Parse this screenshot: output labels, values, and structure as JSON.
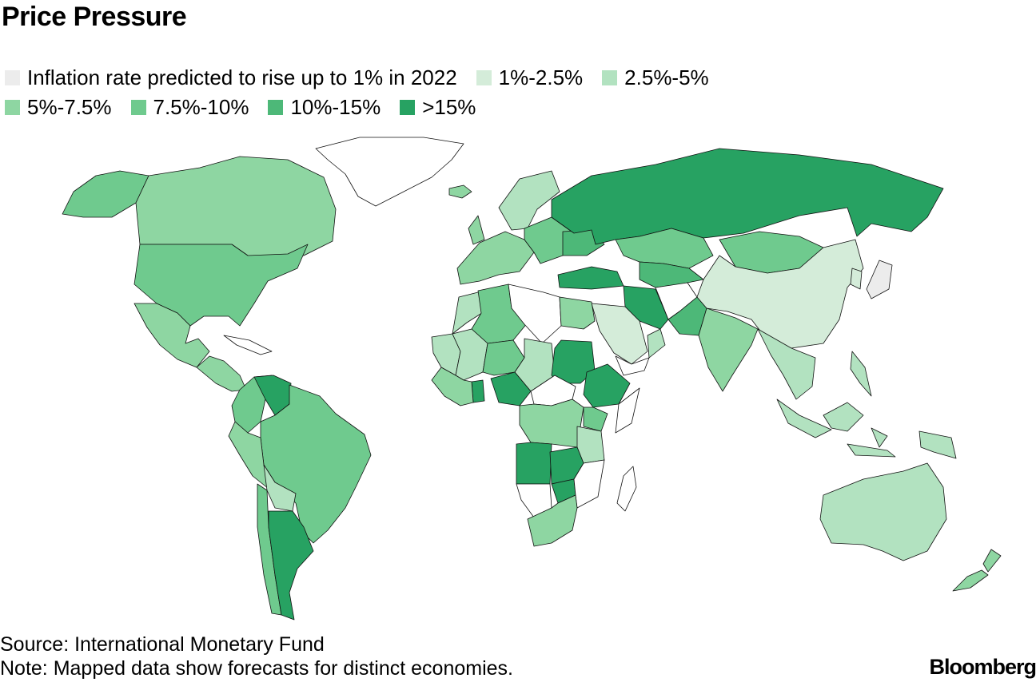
{
  "title": "Price Pressure",
  "legend": [
    {
      "label": "Inflation rate predicted to rise up to 1% in 2022",
      "color": "#ececec"
    },
    {
      "label": "1%-2.5%",
      "color": "#d4ecd9"
    },
    {
      "label": "2.5%-5%",
      "color": "#b2e2c0"
    },
    {
      "label": "5%-7.5%",
      "color": "#8ed6a2"
    },
    {
      "label": "7.5%-10%",
      "color": "#6fca8e"
    },
    {
      "label": "10%-15%",
      "color": "#4db878"
    },
    {
      "label": ">15%",
      "color": "#27a262"
    }
  ],
  "regions": [
    {
      "name": "Greenland",
      "class": "no-data",
      "color": "#ffffff"
    },
    {
      "name": "Canada",
      "class": "5%-7.5%",
      "color": "#8ed6a2"
    },
    {
      "name": "Alaska",
      "class": "7.5%-10%",
      "color": "#6fca8e"
    },
    {
      "name": "United States",
      "class": "7.5%-10%",
      "color": "#6fca8e"
    },
    {
      "name": "Mexico",
      "class": "5%-7.5%",
      "color": "#8ed6a2"
    },
    {
      "name": "Central America",
      "class": "5%-7.5%",
      "color": "#8ed6a2"
    },
    {
      "name": "Cuba",
      "class": "no-data",
      "color": "#ffffff"
    },
    {
      "name": "Venezuela",
      "class": ">15%",
      "color": "#27a262"
    },
    {
      "name": "Colombia",
      "class": "7.5%-10%",
      "color": "#6fca8e"
    },
    {
      "name": "Peru",
      "class": "5%-7.5%",
      "color": "#8ed6a2"
    },
    {
      "name": "Brazil",
      "class": "7.5%-10%",
      "color": "#6fca8e"
    },
    {
      "name": "Bolivia",
      "class": "2.5%-5%",
      "color": "#b2e2c0"
    },
    {
      "name": "Chile",
      "class": "7.5%-10%",
      "color": "#6fca8e"
    },
    {
      "name": "Argentina",
      "class": ">15%",
      "color": "#27a262"
    },
    {
      "name": "Iceland",
      "class": "5%-7.5%",
      "color": "#8ed6a2"
    },
    {
      "name": "United Kingdom",
      "class": "5%-7.5%",
      "color": "#8ed6a2"
    },
    {
      "name": "Scandinavia",
      "class": "2.5%-5%",
      "color": "#b2e2c0"
    },
    {
      "name": "Western Europe",
      "class": "5%-7.5%",
      "color": "#8ed6a2"
    },
    {
      "name": "Eastern Europe",
      "class": "7.5%-10%",
      "color": "#6fca8e"
    },
    {
      "name": "Ukraine",
      "class": "10%-15%",
      "color": "#4db878"
    },
    {
      "name": "Russia",
      "class": ">15%",
      "color": "#27a262"
    },
    {
      "name": "Turkey",
      "class": ">15%",
      "color": "#27a262"
    },
    {
      "name": "Kazakhstan",
      "class": "7.5%-10%",
      "color": "#6fca8e"
    },
    {
      "name": "Central Asia",
      "class": "10%-15%",
      "color": "#4db878"
    },
    {
      "name": "Iran",
      "class": ">15%",
      "color": "#27a262"
    },
    {
      "name": "Afghanistan",
      "class": "no-data",
      "color": "#ffffff"
    },
    {
      "name": "Pakistan",
      "class": "10%-15%",
      "color": "#4db878"
    },
    {
      "name": "Saudi Arabia",
      "class": "1%-2.5%",
      "color": "#d4ecd9"
    },
    {
      "name": "Yemen",
      "class": "no-data",
      "color": "#ffffff"
    },
    {
      "name": "Oman",
      "class": "2.5%-5%",
      "color": "#b2e2c0"
    },
    {
      "name": "India",
      "class": "5%-7.5%",
      "color": "#8ed6a2"
    },
    {
      "name": "Mongolia",
      "class": "7.5%-10%",
      "color": "#6fca8e"
    },
    {
      "name": "China",
      "class": "1%-2.5%",
      "color": "#d4ecd9"
    },
    {
      "name": "Japan",
      "class": "up to 1%",
      "color": "#ececec"
    },
    {
      "name": "Korea",
      "class": "1%-2.5%",
      "color": "#d4ecd9"
    },
    {
      "name": "Southeast Asia",
      "class": "2.5%-5%",
      "color": "#b2e2c0"
    },
    {
      "name": "Philippines",
      "class": "2.5%-5%",
      "color": "#b2e2c0"
    },
    {
      "name": "Indonesia",
      "class": "2.5%-5%",
      "color": "#b2e2c0"
    },
    {
      "name": "Papua New Guinea",
      "class": "2.5%-5%",
      "color": "#b2e2c0"
    },
    {
      "name": "Australia",
      "class": "2.5%-5%",
      "color": "#b2e2c0"
    },
    {
      "name": "New Zealand",
      "class": "5%-7.5%",
      "color": "#8ed6a2"
    },
    {
      "name": "Morocco",
      "class": "2.5%-5%",
      "color": "#b2e2c0"
    },
    {
      "name": "Algeria",
      "class": "7.5%-10%",
      "color": "#6fca8e"
    },
    {
      "name": "Libya",
      "class": "no-data",
      "color": "#ffffff"
    },
    {
      "name": "Egypt",
      "class": "5%-7.5%",
      "color": "#8ed6a2"
    },
    {
      "name": "Mauritania",
      "class": "2.5%-5%",
      "color": "#b2e2c0"
    },
    {
      "name": "Mali",
      "class": "2.5%-5%",
      "color": "#b2e2c0"
    },
    {
      "name": "Niger",
      "class": "7.5%-10%",
      "color": "#6fca8e"
    },
    {
      "name": "Chad",
      "class": "2.5%-5%",
      "color": "#b2e2c0"
    },
    {
      "name": "Sudan",
      "class": ">15%",
      "color": "#27a262"
    },
    {
      "name": "Ethiopia",
      "class": ">15%",
      "color": "#27a262"
    },
    {
      "name": "Somalia",
      "class": "no-data",
      "color": "#ffffff"
    },
    {
      "name": "Nigeria",
      "class": ">15%",
      "color": "#27a262"
    },
    {
      "name": "Ghana",
      "class": ">15%",
      "color": "#27a262"
    },
    {
      "name": "West Africa",
      "class": "5%-7.5%",
      "color": "#8ed6a2"
    },
    {
      "name": "Central African Republic",
      "class": "no-data",
      "color": "#ffffff"
    },
    {
      "name": "DR Congo",
      "class": "5%-7.5%",
      "color": "#8ed6a2"
    },
    {
      "name": "Kenya",
      "class": "7.5%-10%",
      "color": "#6fca8e"
    },
    {
      "name": "Tanzania",
      "class": "2.5%-5%",
      "color": "#b2e2c0"
    },
    {
      "name": "Angola",
      "class": ">15%",
      "color": "#27a262"
    },
    {
      "name": "Zambia",
      "class": ">15%",
      "color": "#27a262"
    },
    {
      "name": "Zimbabwe",
      "class": ">15%",
      "color": "#27a262"
    },
    {
      "name": "Mozambique",
      "class": "no-data",
      "color": "#ffffff"
    },
    {
      "name": "Namibia",
      "class": "no-data",
      "color": "#ffffff"
    },
    {
      "name": "South Africa",
      "class": "5%-7.5%",
      "color": "#8ed6a2"
    },
    {
      "name": "Madagascar",
      "class": "no-data",
      "color": "#ffffff"
    }
  ],
  "footer": {
    "source": "Source: International Monetary Fund",
    "note": "Note: Mapped data show forecasts for distinct economies."
  },
  "logo_text": "Bloomberg"
}
